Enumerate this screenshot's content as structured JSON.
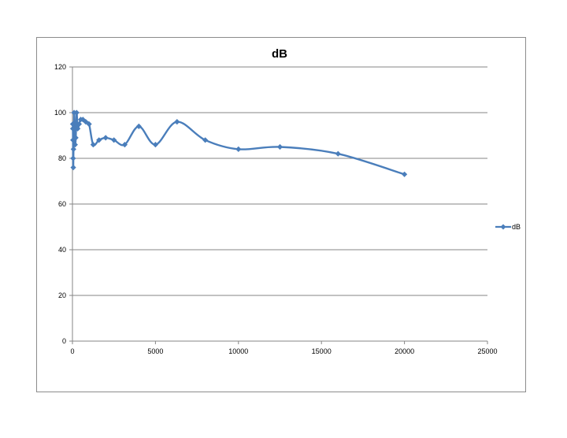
{
  "chart_data": {
    "type": "scatter",
    "title": "dB",
    "xlabel": "",
    "ylabel": "",
    "xlim": [
      0,
      25000
    ],
    "ylim": [
      0,
      120
    ],
    "x_ticks": [
      0,
      5000,
      10000,
      15000,
      20000,
      25000
    ],
    "y_ticks": [
      0,
      20,
      40,
      60,
      80,
      100,
      120
    ],
    "grid": "horizontal",
    "smooth_line": true,
    "legend": {
      "position": "right"
    },
    "series": [
      {
        "name": "dB",
        "color": "#4a7ebb",
        "marker": "diamond",
        "x": [
          20,
          25,
          31.5,
          40,
          50,
          63,
          80,
          100,
          125,
          160,
          200,
          250,
          315,
          400,
          500,
          630,
          800,
          1000,
          1250,
          1600,
          2000,
          2500,
          3150,
          4000,
          5000,
          6300,
          8000,
          10000,
          12500,
          16000,
          20000
        ],
        "y": [
          95,
          93,
          88,
          80,
          76,
          84,
          88,
          100,
          93,
          86,
          89,
          100,
          93,
          95,
          97,
          97,
          96,
          95,
          86,
          88,
          89,
          88,
          86,
          94,
          86,
          96,
          88,
          84,
          85,
          82,
          73
        ]
      }
    ]
  }
}
